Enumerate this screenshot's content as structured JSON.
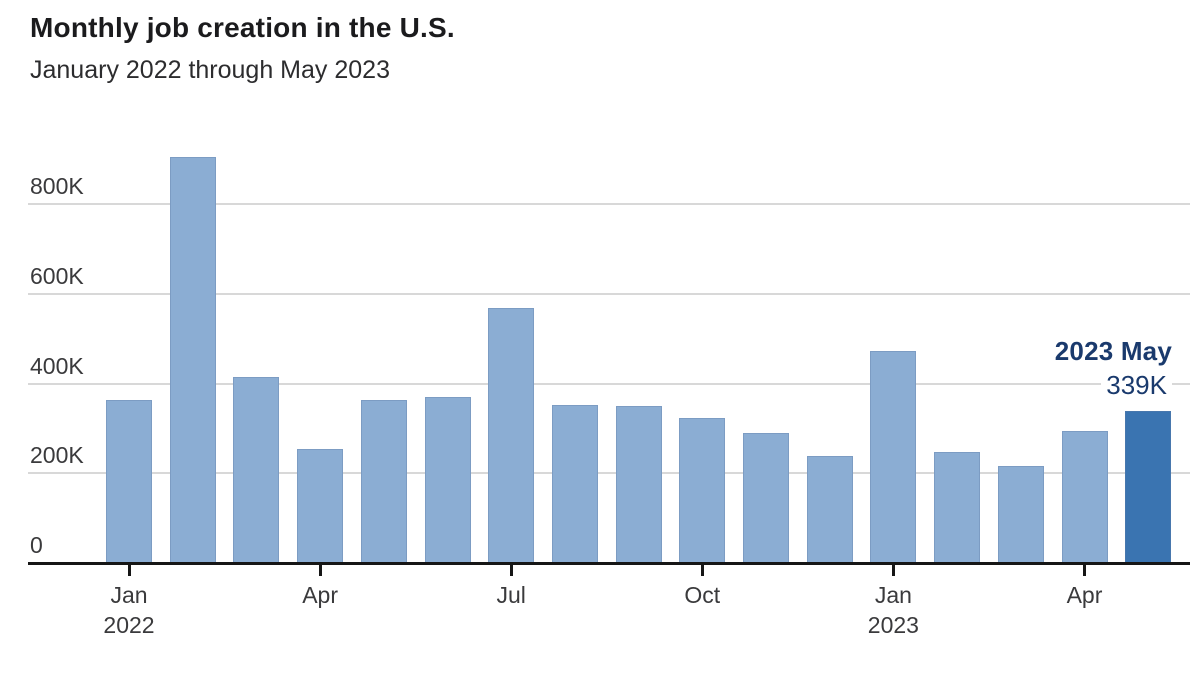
{
  "chart_data": {
    "type": "bar",
    "title": "Monthly job creation in the U.S.",
    "subtitle": "January 2022 through May 2023",
    "categories": [
      "Jan 2022",
      "Feb 2022",
      "Mar 2022",
      "Apr 2022",
      "May 2022",
      "Jun 2022",
      "Jul 2022",
      "Aug 2022",
      "Sep 2022",
      "Oct 2022",
      "Nov 2022",
      "Dec 2022",
      "Jan 2023",
      "Feb 2023",
      "Mar 2023",
      "Apr 2023",
      "May 2023"
    ],
    "values": [
      364,
      904,
      414,
      254,
      364,
      370,
      568,
      352,
      350,
      324,
      290,
      239,
      472,
      248,
      217,
      294,
      339
    ],
    "unit": "K",
    "ylabel": "",
    "xlabel": "",
    "ylim": [
      0,
      920
    ],
    "grid": "horizontal",
    "legend_position": "none",
    "y_ticks": [
      {
        "value": 800,
        "label": "800K"
      },
      {
        "value": 600,
        "label": "600K"
      },
      {
        "value": 400,
        "label": "400K"
      },
      {
        "value": 200,
        "label": "200K"
      },
      {
        "value": 0,
        "label": "0"
      }
    ],
    "x_ticks": [
      {
        "index": 0,
        "label": "Jan",
        "year": "2022"
      },
      {
        "index": 3,
        "label": "Apr",
        "year": ""
      },
      {
        "index": 6,
        "label": "Jul",
        "year": ""
      },
      {
        "index": 9,
        "label": "Oct",
        "year": ""
      },
      {
        "index": 12,
        "label": "Jan",
        "year": "2023"
      },
      {
        "index": 15,
        "label": "Apr",
        "year": ""
      }
    ],
    "highlight_index": 16,
    "annotation": {
      "line1": "2023 May",
      "line2": "339K"
    },
    "colors": {
      "bar": "#8badd3",
      "highlight_bar": "#3a74b1",
      "annotation_text": "#1a3a6d",
      "gridline": "#d8d8d8",
      "axis": "#161616",
      "title_text": "#1b1b1d",
      "label_text": "#3a3a3c"
    }
  }
}
